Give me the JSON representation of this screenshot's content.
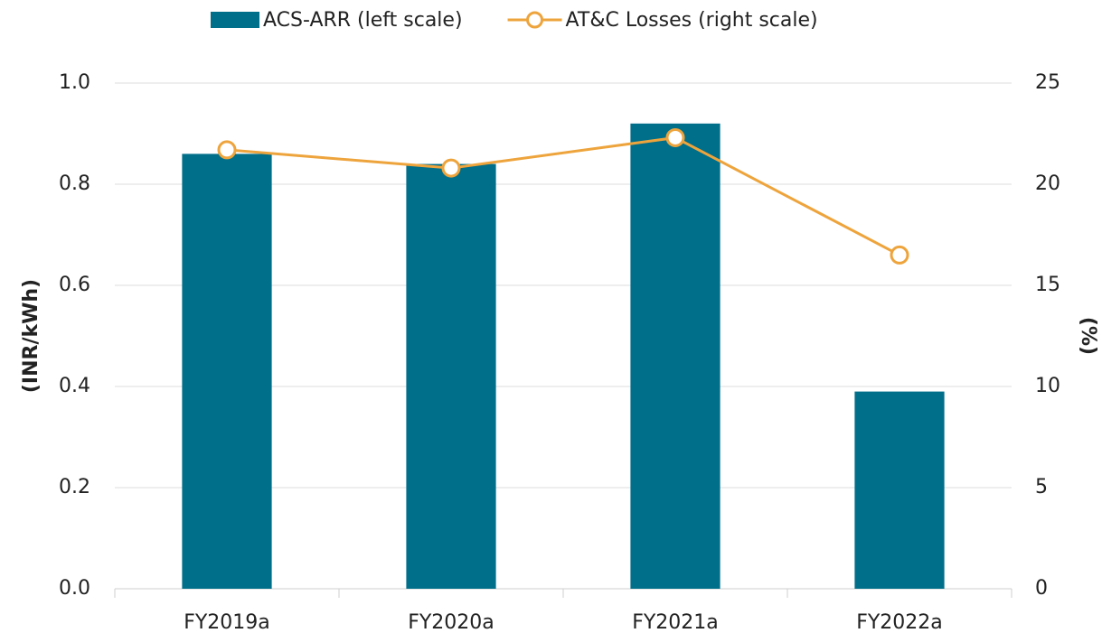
{
  "chart_data": {
    "type": "bar-line",
    "categories": [
      "FY2019a",
      "FY2020a",
      "FY2021a",
      "FY2022a"
    ],
    "series": [
      {
        "name": "ACS-ARR (left scale)",
        "type": "bar",
        "color": "#006f8a",
        "axis": "y",
        "values": [
          0.86,
          0.84,
          0.92,
          0.39
        ]
      },
      {
        "name": "AT&C Losses (right scale)",
        "type": "line",
        "color": "#eea43c",
        "axis": "y2",
        "values": [
          21.7,
          20.8,
          22.3,
          16.5
        ]
      }
    ],
    "ylabel": "(INR/kWh)",
    "y2label": "(%)",
    "ylim": [
      0,
      1
    ],
    "yticks": [
      {
        "value": 0,
        "label": "0.0"
      },
      0.2,
      0.4,
      0.6,
      0.8,
      {
        "value": 1,
        "label": "1.0"
      }
    ],
    "y2lim": [
      0,
      25
    ],
    "y2ticks": [
      0,
      5,
      10,
      15,
      20,
      25
    ],
    "grid": true,
    "legend": "top"
  }
}
